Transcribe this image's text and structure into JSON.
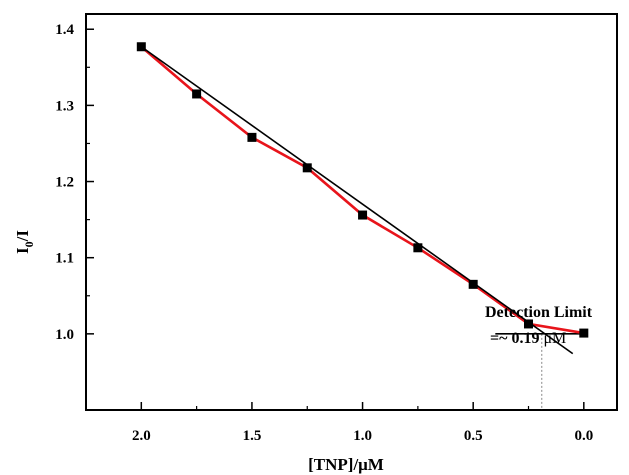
{
  "chart_data": {
    "type": "line",
    "title": "",
    "xlabel": "[TNP]/μM",
    "ylabel_main": "I",
    "ylabel_sub": "0",
    "ylabel_tail": "/I",
    "xlim": [
      2.25,
      -0.15
    ],
    "ylim": [
      0.9,
      1.42
    ],
    "x_reversed": true,
    "grid": false,
    "legend": "none",
    "x_ticks": [
      2.0,
      1.5,
      1.0,
      0.5,
      0.0
    ],
    "x_tick_labels": [
      "2.0",
      "1.5",
      "1.0",
      "0.5",
      "0.0"
    ],
    "y_ticks": [
      1.0,
      1.1,
      1.2,
      1.3,
      1.4
    ],
    "y_tick_labels": [
      "1.0",
      "1.1",
      "1.2",
      "1.3",
      "1.4"
    ],
    "series": [
      {
        "x": [
          2.0,
          1.75,
          1.5,
          1.25,
          1.0,
          0.75,
          0.5,
          0.25,
          0.0
        ],
        "y": [
          1.377,
          1.315,
          1.258,
          1.218,
          1.156,
          1.113,
          1.065,
          1.013,
          1.001
        ],
        "color": "#e8141b",
        "marker": "square"
      }
    ],
    "fit_line": {
      "x": [
        2.0,
        0.05
      ],
      "y": [
        1.377,
        0.974
      ],
      "color": "#000000"
    },
    "baseline": {
      "x": [
        0.4,
        0.0
      ],
      "y": [
        1.0,
        1.0
      ],
      "color": "#000000"
    },
    "detection_marker": {
      "x": 0.19,
      "y_from": 1.0,
      "y_to": 0.9,
      "color": "#888888"
    },
    "annotation": {
      "line1": "Detection Limit",
      "line2_prefix": "=~ 0.19 ",
      "line2_unit": "μM"
    }
  }
}
